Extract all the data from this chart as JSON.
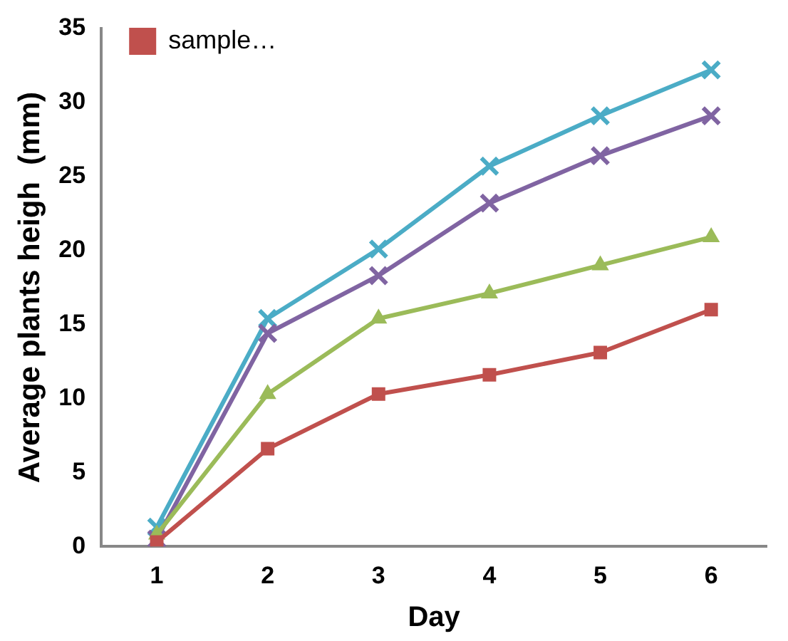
{
  "chart_data": {
    "type": "line",
    "xlabel": "Day",
    "ylabel": "Average plants heigh  (mm)",
    "categories": [
      "1",
      "2",
      "3",
      "4",
      "5",
      "6"
    ],
    "ylim": [
      0,
      35
    ],
    "yticks": [
      0,
      5,
      10,
      15,
      20,
      25,
      30,
      35
    ],
    "grid": false,
    "legend": "top left",
    "series": [
      {
        "name": "sample…",
        "color": "#c0504d",
        "marker": "square",
        "values": [
          0.3,
          6.6,
          10.3,
          11.6,
          13.1,
          16.0
        ]
      },
      {
        "color": "#9bbb59",
        "marker": "triangle",
        "values": [
          0.8,
          10.3,
          15.4,
          17.1,
          19.0,
          20.9
        ]
      },
      {
        "color": "#8064a2",
        "marker": "cross",
        "values": [
          0.5,
          14.4,
          18.3,
          23.2,
          26.4,
          29.1
        ]
      },
      {
        "color": "#4bacc6",
        "marker": "cross",
        "values": [
          1.3,
          15.4,
          20.1,
          25.7,
          29.1,
          32.2
        ]
      }
    ]
  }
}
